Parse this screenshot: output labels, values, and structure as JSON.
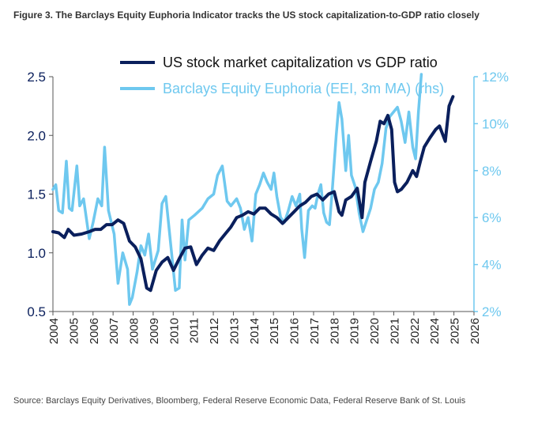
{
  "figure": {
    "title": "Figure 3. The Barclays Equity Euphoria Indicator tracks the US stock capitalization-to-GDP ratio closely",
    "source": "Source: Barclays Equity Derivatives, Bloomberg, Federal Reserve Economic Data, Federal Reserve Bank of St. Louis"
  },
  "chart_data": {
    "type": "line",
    "title": "Figure 3. The Barclays Equity Euphoria Indicator tracks the US stock capitalization-to-GDP ratio closely",
    "xlabel": "",
    "ylabel": "",
    "xlim": [
      2004,
      2026
    ],
    "ylim": [
      0.5,
      2.5
    ],
    "y2lim": [
      2,
      12
    ],
    "x_ticks": [
      "2004",
      "2005",
      "2006",
      "2007",
      "2008",
      "2009",
      "2010",
      "2011",
      "2012",
      "2013",
      "2014",
      "2015",
      "2016",
      "2017",
      "2018",
      "2019",
      "2020",
      "2021",
      "2022",
      "2024",
      "2025",
      "2026"
    ],
    "y_ticks": [
      "0.5",
      "1.0",
      "1.5",
      "2.0",
      "2.5"
    ],
    "y2_ticks": [
      "2%",
      "4%",
      "6%",
      "8%",
      "10%",
      "12%"
    ],
    "legend_position": "top",
    "colors": {
      "primary": "#0a1f5c",
      "secondary": "#6ec8ef",
      "axis": "#555555"
    },
    "series": [
      {
        "name": "US stock market capitalization vs GDP ratio",
        "axis": "left",
        "color": "#0a1f5c",
        "points": [
          [
            2004.0,
            1.18
          ],
          [
            2004.3,
            1.17
          ],
          [
            2004.6,
            1.13
          ],
          [
            2004.8,
            1.2
          ],
          [
            2005.1,
            1.15
          ],
          [
            2005.5,
            1.16
          ],
          [
            2005.9,
            1.18
          ],
          [
            2006.2,
            1.2
          ],
          [
            2006.5,
            1.2
          ],
          [
            2006.8,
            1.24
          ],
          [
            2007.1,
            1.24
          ],
          [
            2007.4,
            1.28
          ],
          [
            2007.7,
            1.25
          ],
          [
            2008.0,
            1.1
          ],
          [
            2008.3,
            1.05
          ],
          [
            2008.6,
            0.95
          ],
          [
            2008.9,
            0.7
          ],
          [
            2009.1,
            0.68
          ],
          [
            2009.4,
            0.85
          ],
          [
            2009.7,
            0.92
          ],
          [
            2010.0,
            0.96
          ],
          [
            2010.3,
            0.85
          ],
          [
            2010.6,
            0.95
          ],
          [
            2010.9,
            1.04
          ],
          [
            2011.2,
            1.05
          ],
          [
            2011.5,
            0.9
          ],
          [
            2011.8,
            0.98
          ],
          [
            2012.1,
            1.04
          ],
          [
            2012.4,
            1.02
          ],
          [
            2012.7,
            1.1
          ],
          [
            2013.0,
            1.16
          ],
          [
            2013.3,
            1.22
          ],
          [
            2013.6,
            1.3
          ],
          [
            2013.9,
            1.32
          ],
          [
            2014.2,
            1.35
          ],
          [
            2014.5,
            1.33
          ],
          [
            2014.8,
            1.38
          ],
          [
            2015.1,
            1.38
          ],
          [
            2015.4,
            1.33
          ],
          [
            2015.7,
            1.3
          ],
          [
            2016.0,
            1.25
          ],
          [
            2016.3,
            1.3
          ],
          [
            2016.6,
            1.35
          ],
          [
            2016.9,
            1.4
          ],
          [
            2017.2,
            1.43
          ],
          [
            2017.5,
            1.48
          ],
          [
            2017.8,
            1.5
          ],
          [
            2018.1,
            1.45
          ],
          [
            2018.4,
            1.5
          ],
          [
            2018.7,
            1.52
          ],
          [
            2018.95,
            1.35
          ],
          [
            2019.1,
            1.32
          ],
          [
            2019.3,
            1.45
          ],
          [
            2019.6,
            1.48
          ],
          [
            2019.9,
            1.55
          ],
          [
            2020.15,
            1.3
          ],
          [
            2020.3,
            1.6
          ],
          [
            2020.6,
            1.78
          ],
          [
            2020.9,
            1.95
          ],
          [
            2021.1,
            2.12
          ],
          [
            2021.3,
            2.1
          ],
          [
            2021.5,
            2.17
          ],
          [
            2021.7,
            2.05
          ],
          [
            2021.85,
            1.6
          ],
          [
            2022.0,
            1.52
          ],
          [
            2022.2,
            1.54
          ],
          [
            2022.5,
            1.6
          ],
          [
            2022.8,
            1.7
          ],
          [
            2023.0,
            1.65
          ],
          [
            2023.2,
            1.78
          ],
          [
            2023.4,
            1.9
          ],
          [
            2023.7,
            1.98
          ],
          [
            2024.0,
            2.05
          ],
          [
            2024.2,
            2.08
          ],
          [
            2024.5,
            1.95
          ],
          [
            2024.7,
            2.25
          ],
          [
            2024.9,
            2.33
          ]
        ]
      },
      {
        "name": "Barclays Equity Euphoria (EEI, 3m MA) (rhs)",
        "axis": "right",
        "color": "#6ec8ef",
        "points": [
          [
            2004.0,
            7.2
          ],
          [
            2004.15,
            7.4
          ],
          [
            2004.3,
            6.3
          ],
          [
            2004.5,
            6.2
          ],
          [
            2004.7,
            8.4
          ],
          [
            2004.85,
            6.4
          ],
          [
            2005.0,
            6.3
          ],
          [
            2005.25,
            8.2
          ],
          [
            2005.4,
            6.5
          ],
          [
            2005.6,
            6.8
          ],
          [
            2005.9,
            5.1
          ],
          [
            2006.1,
            5.8
          ],
          [
            2006.35,
            6.8
          ],
          [
            2006.55,
            6.5
          ],
          [
            2006.7,
            9.0
          ],
          [
            2006.9,
            6.3
          ],
          [
            2007.2,
            5.3
          ],
          [
            2007.4,
            3.2
          ],
          [
            2007.65,
            4.5
          ],
          [
            2007.9,
            3.8
          ],
          [
            2008.0,
            2.3
          ],
          [
            2008.15,
            2.6
          ],
          [
            2008.4,
            3.7
          ],
          [
            2008.6,
            4.8
          ],
          [
            2008.8,
            4.4
          ],
          [
            2009.0,
            5.3
          ],
          [
            2009.2,
            3.8
          ],
          [
            2009.5,
            4.6
          ],
          [
            2009.7,
            6.6
          ],
          [
            2009.9,
            6.9
          ],
          [
            2010.2,
            4.5
          ],
          [
            2010.4,
            2.9
          ],
          [
            2010.6,
            3.0
          ],
          [
            2010.75,
            5.9
          ],
          [
            2010.9,
            4.2
          ],
          [
            2011.1,
            5.9
          ],
          [
            2011.4,
            6.1
          ],
          [
            2011.8,
            6.4
          ],
          [
            2012.1,
            6.8
          ],
          [
            2012.4,
            7.0
          ],
          [
            2012.6,
            7.8
          ],
          [
            2012.85,
            8.2
          ],
          [
            2013.1,
            6.7
          ],
          [
            2013.3,
            6.5
          ],
          [
            2013.6,
            6.8
          ],
          [
            2013.8,
            6.4
          ],
          [
            2014.0,
            5.5
          ],
          [
            2014.2,
            6.0
          ],
          [
            2014.4,
            5.0
          ],
          [
            2014.6,
            7.0
          ],
          [
            2014.8,
            7.4
          ],
          [
            2015.0,
            7.9
          ],
          [
            2015.2,
            7.5
          ],
          [
            2015.4,
            7.2
          ],
          [
            2015.55,
            7.9
          ],
          [
            2015.7,
            6.9
          ],
          [
            2015.9,
            6.0
          ],
          [
            2016.1,
            5.8
          ],
          [
            2016.3,
            6.3
          ],
          [
            2016.5,
            6.9
          ],
          [
            2016.7,
            6.5
          ],
          [
            2016.9,
            7.0
          ],
          [
            2017.0,
            5.5
          ],
          [
            2017.15,
            4.3
          ],
          [
            2017.35,
            6.3
          ],
          [
            2017.55,
            6.5
          ],
          [
            2017.7,
            6.4
          ],
          [
            2017.85,
            7.0
          ],
          [
            2018.0,
            7.4
          ],
          [
            2018.15,
            6.2
          ],
          [
            2018.3,
            5.8
          ],
          [
            2018.45,
            5.7
          ],
          [
            2018.6,
            7.2
          ],
          [
            2018.8,
            9.5
          ],
          [
            2018.95,
            10.9
          ],
          [
            2019.1,
            10.2
          ],
          [
            2019.3,
            8.0
          ],
          [
            2019.45,
            9.5
          ],
          [
            2019.6,
            7.8
          ],
          [
            2019.8,
            7.3
          ],
          [
            2020.0,
            6.2
          ],
          [
            2020.2,
            5.4
          ],
          [
            2020.4,
            5.9
          ],
          [
            2020.6,
            6.4
          ],
          [
            2020.8,
            7.2
          ],
          [
            2021.0,
            7.5
          ],
          [
            2021.2,
            8.3
          ],
          [
            2021.4,
            9.8
          ],
          [
            2021.6,
            10.3
          ],
          [
            2021.8,
            10.5
          ],
          [
            2022.0,
            10.7
          ],
          [
            2022.2,
            10.1
          ],
          [
            2022.4,
            9.2
          ],
          [
            2022.6,
            10.5
          ],
          [
            2022.8,
            9.0
          ],
          [
            2022.95,
            8.5
          ],
          [
            2023.1,
            10.5
          ],
          [
            2023.25,
            12.1
          ]
        ]
      }
    ]
  }
}
